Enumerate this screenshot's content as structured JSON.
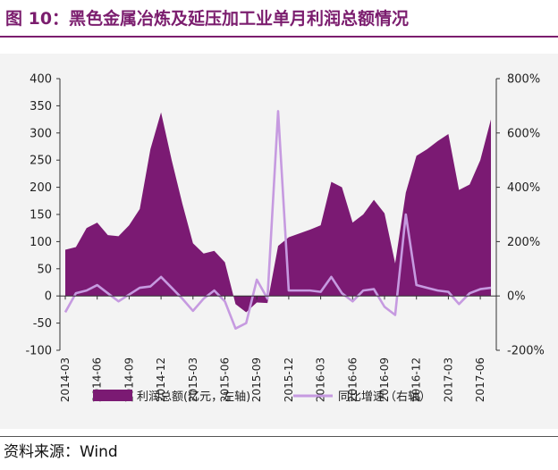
{
  "title": "图 10：黑色金属冶炼及延压加工业单月利润总额情况",
  "source": "资料来源：Wind",
  "colors": {
    "accent": "#7B1D6E",
    "area": "#7B1A73",
    "line": "#C69AE0",
    "panel": "#F3F3F3"
  },
  "chart_data": {
    "type": "area",
    "x_tick_labels": [
      "2014-03",
      "2014-06",
      "2014-09",
      "2014-12",
      "2015-03",
      "2015-06",
      "2015-09",
      "2015-12",
      "2016-03",
      "2016-06",
      "2016-09",
      "2016-12",
      "2017-03",
      "2017-06"
    ],
    "left_axis": {
      "range": [
        -100,
        400
      ],
      "ticks": [
        "400",
        "350",
        "300",
        "250",
        "200",
        "150",
        "100",
        "50",
        "0",
        "-50",
        "-100"
      ]
    },
    "right_axis": {
      "range": [
        -200,
        800
      ],
      "ticks": [
        "800%",
        "600%",
        "400%",
        "200%",
        "0%",
        "-200%"
      ]
    },
    "legend": {
      "placement": "bottom",
      "area_label": "利润总额(亿元，左轴)",
      "line_label": "同比增速（右轴）"
    },
    "series": [
      {
        "name": "利润总额(亿元，左轴)",
        "axis": "left",
        "kind": "area",
        "x": [
          "2014-03",
          "2014-04",
          "2014-05",
          "2014-06",
          "2014-07",
          "2014-08",
          "2014-09",
          "2014-10",
          "2014-11",
          "2014-12",
          "2015-01",
          "2015-02",
          "2015-03",
          "2015-04",
          "2015-05",
          "2015-06",
          "2015-07",
          "2015-08",
          "2015-09",
          "2015-10",
          "2015-11",
          "2015-12",
          "2016-01",
          "2016-02",
          "2016-03",
          "2016-04",
          "2016-05",
          "2016-06",
          "2016-07",
          "2016-08",
          "2016-09",
          "2016-10",
          "2016-11",
          "2016-12",
          "2017-01",
          "2017-02",
          "2017-03",
          "2017-04",
          "2017-05",
          "2017-06",
          "2017-07"
        ],
        "values": [
          85,
          90,
          125,
          135,
          112,
          110,
          130,
          160,
          270,
          338,
          250,
          170,
          97,
          78,
          83,
          62,
          -15,
          -30,
          -12,
          -13,
          92,
          108,
          115,
          122,
          130,
          210,
          200,
          135,
          150,
          177,
          152,
          60,
          190,
          258,
          270,
          285,
          298,
          195,
          205,
          250,
          325
        ]
      },
      {
        "name": "同比增速（右轴）",
        "axis": "right",
        "kind": "line",
        "x": [
          "2014-03",
          "2014-04",
          "2014-05",
          "2014-06",
          "2014-07",
          "2014-08",
          "2014-09",
          "2014-10",
          "2014-11",
          "2014-12",
          "2015-01",
          "2015-02",
          "2015-03",
          "2015-04",
          "2015-05",
          "2015-06",
          "2015-07",
          "2015-08",
          "2015-09",
          "2015-10",
          "2015-11",
          "2015-12",
          "2016-01",
          "2016-02",
          "2016-03",
          "2016-04",
          "2016-05",
          "2016-06",
          "2016-07",
          "2016-08",
          "2016-09",
          "2016-10",
          "2016-11",
          "2016-12",
          "2017-01",
          "2017-02",
          "2017-03",
          "2017-04",
          "2017-05",
          "2017-06",
          "2017-07"
        ],
        "values": [
          -60,
          10,
          20,
          40,
          10,
          -20,
          5,
          30,
          35,
          70,
          30,
          -10,
          -55,
          -10,
          20,
          -20,
          -120,
          -100,
          60,
          -10,
          680,
          20,
          20,
          20,
          15,
          70,
          10,
          -20,
          20,
          25,
          -40,
          -70,
          300,
          40,
          30,
          20,
          15,
          -30,
          10,
          25,
          30
        ]
      }
    ]
  }
}
